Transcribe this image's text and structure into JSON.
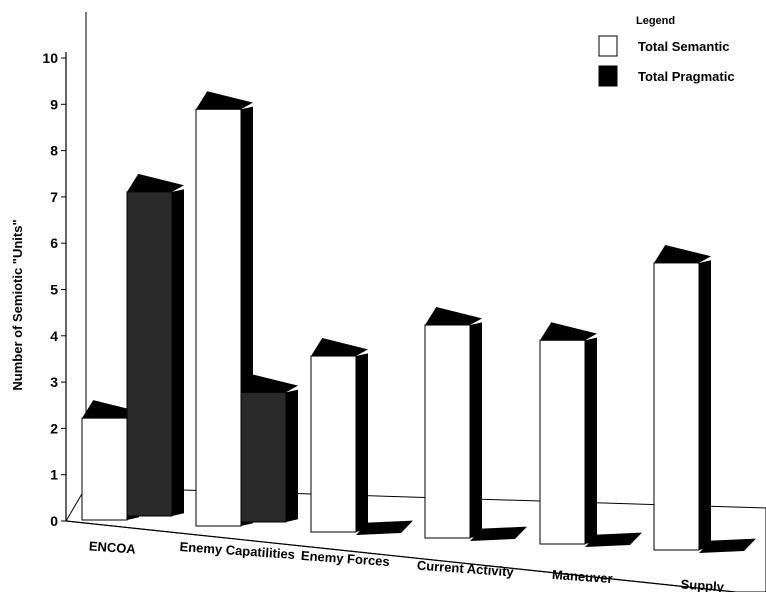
{
  "chart_data": {
    "type": "bar",
    "ylabel": "Number of Semiotic \"Units\"",
    "ylim": [
      0,
      10
    ],
    "yticks": [
      "0",
      "1",
      "2",
      "3",
      "4",
      "5",
      "6",
      "7",
      "8",
      "9",
      "10"
    ],
    "categories": [
      "ENCOA",
      "Enemy Capatilities",
      "Enemy Forces",
      "Current Activity",
      "Maneuver",
      "Supply"
    ],
    "series": [
      {
        "name": "Total Semantic",
        "values": [
          2.2,
          9.0,
          3.8,
          4.6,
          4.4,
          6.2
        ]
      },
      {
        "name": "Total Pragmatic",
        "values": [
          7.0,
          2.8,
          0,
          0,
          0,
          0
        ]
      }
    ],
    "legend": {
      "title": "Legend",
      "position": "top-right"
    },
    "grid": false,
    "style": "3d"
  },
  "colors": {
    "semantic_face": "#ffffff",
    "pragmatic_face": "#2a2a2a",
    "shade": "#000000"
  }
}
